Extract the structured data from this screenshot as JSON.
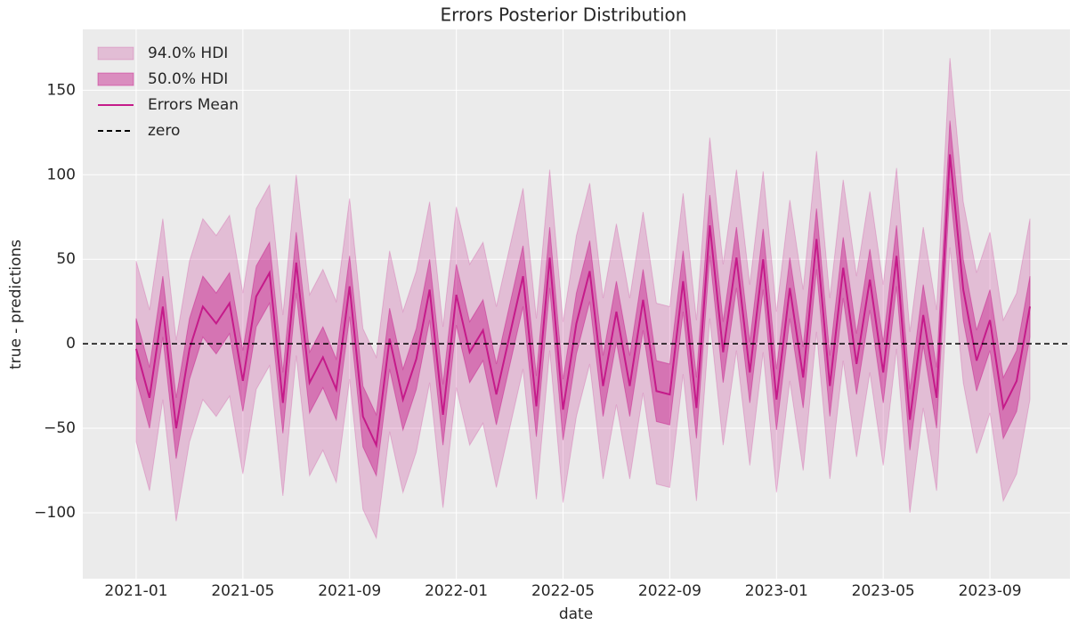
{
  "chart_data": {
    "type": "hdi",
    "title": "Errors Posterior Distribution",
    "x_label": "date",
    "y_label": "true - predictions",
    "x": [
      "2021-01",
      "2021-01",
      "2021-02",
      "2021-02",
      "2021-03",
      "2021-03",
      "2021-04",
      "2021-04",
      "2021-05",
      "2021-05",
      "2021-06",
      "2021-06",
      "2021-07",
      "2021-07",
      "2021-08",
      "2021-08",
      "2021-09",
      "2021-09",
      "2021-10",
      "2021-10",
      "2021-11",
      "2021-11",
      "2021-12",
      "2021-12",
      "2022-01",
      "2022-01",
      "2022-02",
      "2022-02",
      "2022-03",
      "2022-03",
      "2022-04",
      "2022-04",
      "2022-05",
      "2022-05",
      "2022-06",
      "2022-06",
      "2022-07",
      "2022-07",
      "2022-08",
      "2022-08",
      "2022-09",
      "2022-09",
      "2022-10",
      "2022-10",
      "2022-11",
      "2022-11",
      "2022-12",
      "2022-12",
      "2023-01",
      "2023-01",
      "2023-02",
      "2023-02",
      "2023-03",
      "2023-03",
      "2023-04",
      "2023-04",
      "2023-05",
      "2023-05",
      "2023-06",
      "2023-06",
      "2023-07",
      "2023-07",
      "2023-08",
      "2023-08",
      "2023-09",
      "2023-09",
      "2023-10",
      "2023-10"
    ],
    "xlim": [
      "2020-11",
      "2023-12"
    ],
    "xticks": [
      "2021-01",
      "2021-05",
      "2021-09",
      "2022-01",
      "2022-05",
      "2022-09",
      "2023-01",
      "2023-05",
      "2023-09"
    ],
    "ylim": [
      -139,
      186
    ],
    "yticks": [
      {
        "value": -100,
        "label": "−100"
      },
      {
        "value": -50,
        "label": "−50"
      },
      0,
      50,
      100,
      150
    ],
    "grid": true,
    "legend": "upper left",
    "series": [
      {
        "name": "94.0% HDI",
        "kind": "band",
        "color": "#c51b8a",
        "opacity": 0.22,
        "upper": [
          49,
          20,
          74,
          2,
          49,
          74,
          64,
          76,
          30,
          80,
          94,
          17,
          100,
          29,
          44,
          25,
          86,
          9,
          -8,
          55,
          19,
          43,
          84,
          10,
          81,
          47,
          60,
          22,
          57,
          92,
          15,
          103,
          13,
          64,
          95,
          27,
          71,
          27,
          78,
          24,
          22,
          89,
          14,
          122,
          47,
          103,
          35,
          102,
          19,
          85,
          32,
          114,
          27,
          97,
          40,
          90,
          35,
          104,
          7,
          69,
          20,
          169,
          84,
          42,
          66,
          14,
          30,
          74
        ],
        "lower": [
          -58,
          -87,
          -33,
          -105,
          -58,
          -33,
          -43,
          -31,
          -77,
          -27,
          -13,
          -90,
          -7,
          -78,
          -63,
          -82,
          -21,
          -98,
          -115,
          -52,
          -88,
          -64,
          -23,
          -97,
          -26,
          -60,
          -47,
          -85,
          -50,
          -15,
          -92,
          -4,
          -94,
          -43,
          -12,
          -80,
          -36,
          -80,
          -29,
          -83,
          -85,
          -18,
          -93,
          15,
          -60,
          -4,
          -72,
          -5,
          -88,
          -22,
          -75,
          7,
          -80,
          -10,
          -67,
          -17,
          -72,
          -3,
          -100,
          -38,
          -87,
          57,
          -23,
          -65,
          -41,
          -93,
          -77,
          -33
        ]
      },
      {
        "name": "50.0% HDI",
        "kind": "band",
        "color": "#c51b8a",
        "opacity": 0.45,
        "upper": [
          15,
          -14,
          40,
          -32,
          15,
          40,
          30,
          42,
          -4,
          46,
          60,
          -17,
          66,
          -5,
          10,
          -9,
          52,
          -25,
          -42,
          21,
          -15,
          9,
          50,
          -24,
          47,
          13,
          26,
          -12,
          23,
          58,
          -19,
          69,
          -21,
          30,
          61,
          -7,
          37,
          -7,
          44,
          -10,
          -12,
          55,
          -20,
          88,
          13,
          69,
          1,
          68,
          -15,
          51,
          -2,
          80,
          -7,
          63,
          6,
          56,
          1,
          70,
          -27,
          35,
          -14,
          132,
          50,
          8,
          32,
          -20,
          -4,
          40
        ],
        "lower": [
          -21,
          -50,
          4,
          -68,
          -21,
          4,
          -6,
          6,
          -40,
          10,
          24,
          -53,
          30,
          -41,
          -26,
          -45,
          16,
          -61,
          -78,
          -15,
          -51,
          -27,
          14,
          -60,
          11,
          -23,
          -10,
          -48,
          -13,
          22,
          -55,
          33,
          -57,
          -6,
          25,
          -43,
          1,
          -43,
          8,
          -46,
          -48,
          19,
          -56,
          52,
          -23,
          33,
          -35,
          32,
          -51,
          15,
          -38,
          44,
          -43,
          27,
          -30,
          20,
          -35,
          34,
          -63,
          -1,
          -50,
          92,
          14,
          -28,
          -4,
          -56,
          -40,
          4
        ]
      },
      {
        "name": "Errors Mean",
        "kind": "line",
        "color": "#c51b8a",
        "values": [
          -3,
          -32,
          22,
          -50,
          -3,
          22,
          12,
          24,
          -22,
          28,
          42,
          -35,
          48,
          -23,
          -8,
          -27,
          34,
          -43,
          -60,
          3,
          -33,
          -9,
          32,
          -42,
          29,
          -5,
          8,
          -30,
          5,
          40,
          -37,
          51,
          -39,
          12,
          43,
          -25,
          19,
          -25,
          26,
          -28,
          -30,
          37,
          -38,
          70,
          -5,
          51,
          -17,
          50,
          -33,
          33,
          -20,
          62,
          -25,
          45,
          -12,
          38,
          -17,
          52,
          -45,
          17,
          -32,
          112,
          32,
          -10,
          14,
          -38,
          -22,
          22
        ]
      },
      {
        "name": "zero",
        "kind": "hline",
        "color": "#000000",
        "dashed": true,
        "value": 0
      }
    ]
  }
}
